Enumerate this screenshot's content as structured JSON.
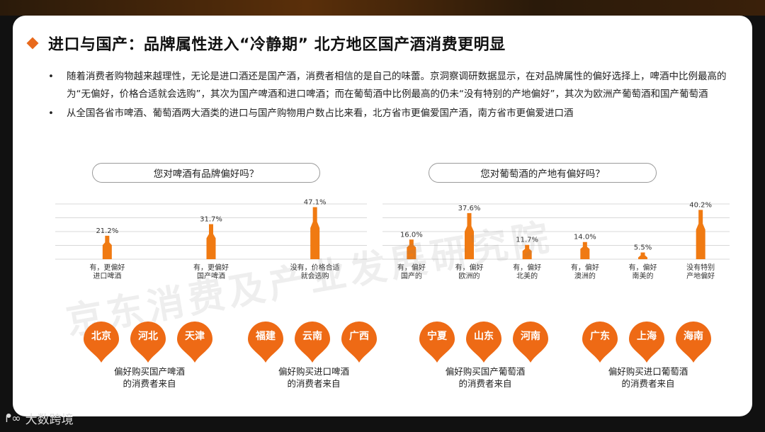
{
  "title": "进口与国产：品牌属性进入“冷静期” 北方地区国产酒消费更明显",
  "bullets": [
    "随着消费者购物越来越理性，无论是进口酒还是国产酒，消费者相信的是自己的味蕾。京洞察调研数据显示，在对品牌属性的偏好选择上，啤酒中比例最高的为“无偏好，价格合适就会选购”，其次为国产啤酒和进口啤酒；而在葡萄酒中比例最高的仍未“没有特别的产地偏好”，其次为欧洲产葡萄酒和国产葡萄酒",
    "从全国各省市啤酒、葡萄酒两大酒类的进口与国产购物用户数占比来看，北方省市更偏爱国产酒，南方省市更偏爱进口酒"
  ],
  "bullet_symbol": "•",
  "watermark": "京东消费及产业发展研究院",
  "brand": {
    "icon": "weibo-like-icon",
    "icon_glyph": "ᖰ∞",
    "text": "大数跨境"
  },
  "colors": {
    "accent": "#e8691c",
    "bar": "#f07a12",
    "pin": "#ee6a15"
  },
  "chart_data": [
    {
      "type": "bar",
      "title": "您对啤酒有品牌偏好吗？",
      "categories": [
        [
          "有，更偏好",
          "进口啤酒"
        ],
        [
          "有，更偏好",
          "国产啤酒"
        ],
        [
          "没有，价格合适",
          "就会选购"
        ]
      ],
      "values": [
        21.2,
        31.7,
        47.1
      ],
      "value_labels": [
        "21.2%",
        "31.7%",
        "47.1%"
      ],
      "ylim": [
        0,
        50
      ],
      "grid": true,
      "mark": "bottle"
    },
    {
      "type": "bar",
      "title": "您对葡萄酒的产地有偏好吗？",
      "categories": [
        [
          "有，偏好",
          "国产的"
        ],
        [
          "有，偏好",
          "欧洲的"
        ],
        [
          "有，偏好",
          "北美的"
        ],
        [
          "有，偏好",
          "澳洲的"
        ],
        [
          "有，偏好",
          "南美的"
        ],
        [
          "没有特别",
          "产地偏好"
        ]
      ],
      "values": [
        16.0,
        37.6,
        11.7,
        14.0,
        5.5,
        40.2
      ],
      "value_labels": [
        "16.0%",
        "37.6%",
        "11.7%",
        "14.0%",
        "5.5%",
        "40.2%"
      ],
      "ylim": [
        0,
        45
      ],
      "grid": true,
      "mark": "bottle"
    }
  ],
  "regions": [
    {
      "cities": [
        "北京",
        "河北",
        "天津"
      ],
      "caption": [
        "偏好购买国产啤酒",
        "的消费者来自"
      ]
    },
    {
      "cities": [
        "福建",
        "云南",
        "广西"
      ],
      "caption": [
        "偏好购买进口啤酒",
        "的消费者来自"
      ]
    },
    {
      "cities": [
        "宁夏",
        "山东",
        "河南"
      ],
      "caption": [
        "偏好购买国产葡萄酒",
        "的消费者来自"
      ]
    },
    {
      "cities": [
        "广东",
        "上海",
        "海南"
      ],
      "caption": [
        "偏好购买进口葡萄酒",
        "的消费者来自"
      ]
    }
  ]
}
